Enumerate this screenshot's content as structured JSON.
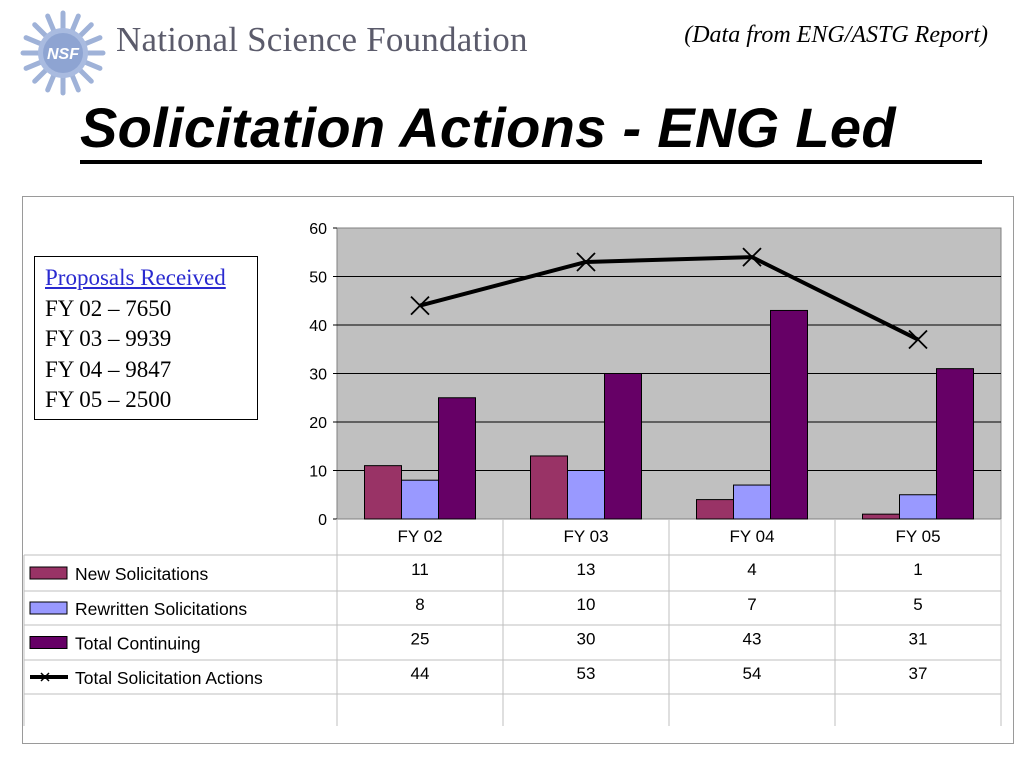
{
  "header": {
    "org_name": "National Science Foundation",
    "logo_text": "NSF",
    "source_note": "(Data from ENG/ASTG Report)",
    "title": "Solicitation Actions - ENG Led"
  },
  "proposals_box": {
    "title": "Proposals Received",
    "lines": [
      "FY 02 – 7650",
      "FY 03 – 9939",
      "FY 04 – 9847",
      "FY 05 – 2500"
    ]
  },
  "chart_data": {
    "type": "bar",
    "categories": [
      "FY 02",
      "FY 03",
      "FY 04",
      "FY 05"
    ],
    "series": [
      {
        "name": "New Solicitations",
        "kind": "bar",
        "color": "#993366",
        "values": [
          11,
          13,
          4,
          1
        ]
      },
      {
        "name": "Rewritten Solicitations",
        "kind": "bar",
        "color": "#9999ff",
        "values": [
          8,
          10,
          7,
          5
        ]
      },
      {
        "name": "Total Continuing",
        "kind": "bar",
        "color": "#660066",
        "values": [
          25,
          30,
          43,
          31
        ]
      },
      {
        "name": "Total Solicitation Actions",
        "kind": "line",
        "marker": "x",
        "color": "#000000",
        "values": [
          44,
          53,
          54,
          37
        ]
      }
    ],
    "ylim": [
      0,
      60
    ],
    "yticks": [
      0,
      10,
      20,
      30,
      40,
      50,
      60
    ],
    "grid": true,
    "plot_background": "#c0c0c0",
    "data_table": true
  }
}
